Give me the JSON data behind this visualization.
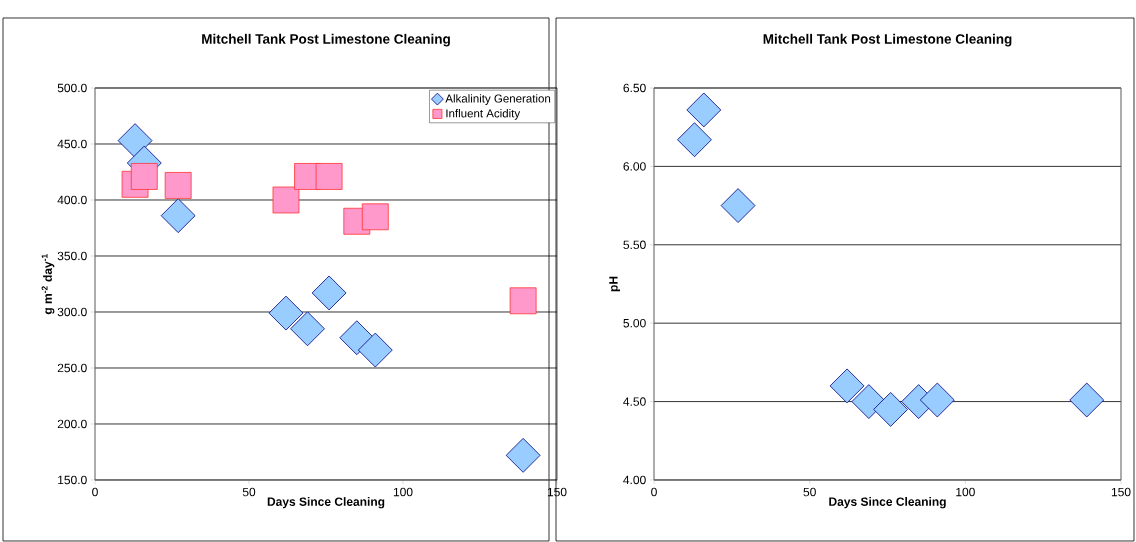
{
  "chart_data": [
    {
      "type": "scatter",
      "title": "Mitchell Tank Post Limestone Cleaning",
      "xlabel": "Days Since Cleaning",
      "ylabel": "g m$^{-2}$ day$^{-1}$",
      "series": [
        {
          "name": "Alkalinity Generation",
          "color": "#99ccff",
          "marker": "diamond",
          "x": [
            13,
            16,
            27,
            62,
            69,
            76,
            85,
            91,
            139
          ],
          "values": [
            453,
            433,
            386,
            299,
            285,
            317,
            277,
            266,
            172
          ]
        },
        {
          "name": "Influent Acidity",
          "color": "#ff99cc",
          "marker": "square",
          "x": [
            13,
            16,
            27,
            62,
            69,
            76,
            85,
            91,
            139
          ],
          "values": [
            414,
            421,
            413,
            400,
            421,
            421,
            381,
            385,
            310
          ]
        }
      ],
      "xlim": [
        0,
        150
      ],
      "xticks": [
        0,
        50,
        100,
        150
      ],
      "ylim": [
        150,
        500
      ],
      "yticks": [
        {
          "value": 150,
          "label": "150.0"
        },
        {
          "value": 200,
          "label": "200.0"
        },
        {
          "value": 250,
          "label": "250.0"
        },
        {
          "value": 300,
          "label": "300.0"
        },
        {
          "value": 350,
          "label": "350.0"
        },
        {
          "value": 400,
          "label": "400.0"
        },
        {
          "value": 450,
          "label": "450.0"
        },
        {
          "value": 500,
          "label": "500.0"
        }
      ],
      "grid": "y",
      "legend": "top right"
    },
    {
      "type": "scatter",
      "title": "Mitchell Tank Post Limestone Cleaning",
      "xlabel": "Days Since Cleaning",
      "ylabel": "pH",
      "series": [
        {
          "color": "#99ccff",
          "marker": "diamond",
          "x": [
            13,
            16,
            27,
            62,
            69,
            76,
            85,
            91,
            139
          ],
          "values": [
            6.17,
            6.36,
            5.75,
            4.6,
            4.5,
            4.45,
            4.5,
            4.51,
            4.51
          ]
        }
      ],
      "xlim": [
        0,
        150
      ],
      "xticks": [
        0,
        50,
        100,
        150
      ],
      "ylim": [
        4,
        6.5
      ],
      "yticks": [
        {
          "value": 4,
          "label": "4.00"
        },
        {
          "value": 4.5,
          "label": "4.50"
        },
        {
          "value": 5,
          "label": "5.00"
        },
        {
          "value": 5.5,
          "label": "5.50"
        },
        {
          "value": 6,
          "label": "6.00"
        },
        {
          "value": 6.5,
          "label": "6.50"
        }
      ],
      "grid": "y"
    }
  ]
}
